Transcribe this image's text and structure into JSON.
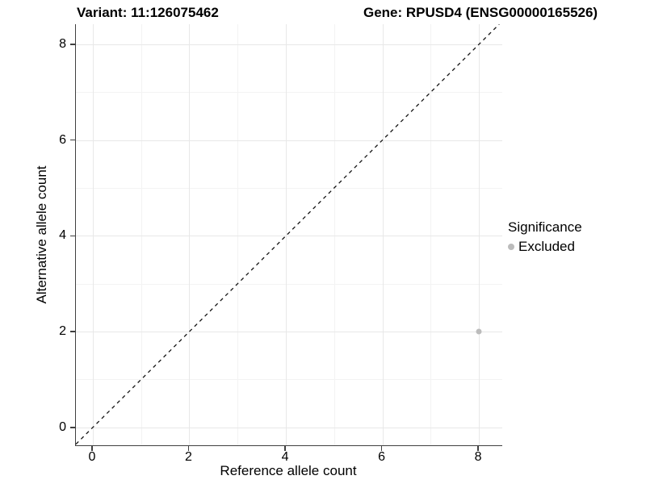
{
  "title": {
    "variant": "Variant: 11:126075462",
    "gene": "Gene: RPUSD4 (ENSG00000165526)"
  },
  "chart_data": {
    "type": "scatter",
    "title": "Variant: 11:126075462   Gene: RPUSD4 (ENSG00000165526)",
    "xlabel": "Reference allele count",
    "ylabel": "Alternative allele count",
    "xlim": [
      -0.35,
      8.5
    ],
    "ylim": [
      -0.39,
      8.42
    ],
    "xticks": [
      0,
      2,
      4,
      6,
      8
    ],
    "yticks": [
      0,
      2,
      4,
      6,
      8
    ],
    "minor_gridlines_x": [
      1,
      3,
      5,
      7
    ],
    "minor_gridlines_y": [
      1,
      3,
      5,
      7
    ],
    "grid": true,
    "points": [
      {
        "x": 8,
        "y": 2,
        "significance": "Excluded"
      }
    ],
    "reference_line": {
      "type": "abline",
      "slope": 1,
      "intercept": 0,
      "style": "dashed"
    },
    "legend": {
      "title": "Significance",
      "position": "right",
      "items": [
        {
          "label": "Excluded",
          "color": "#bcbcbc"
        }
      ]
    }
  },
  "colors": {
    "point": "#bcbcbc",
    "grid_major": "#e8e8e8",
    "grid_minor": "#f3f3f3",
    "axis_line": "#404040",
    "dashed_line": "#141414",
    "background": "#ffffff"
  }
}
